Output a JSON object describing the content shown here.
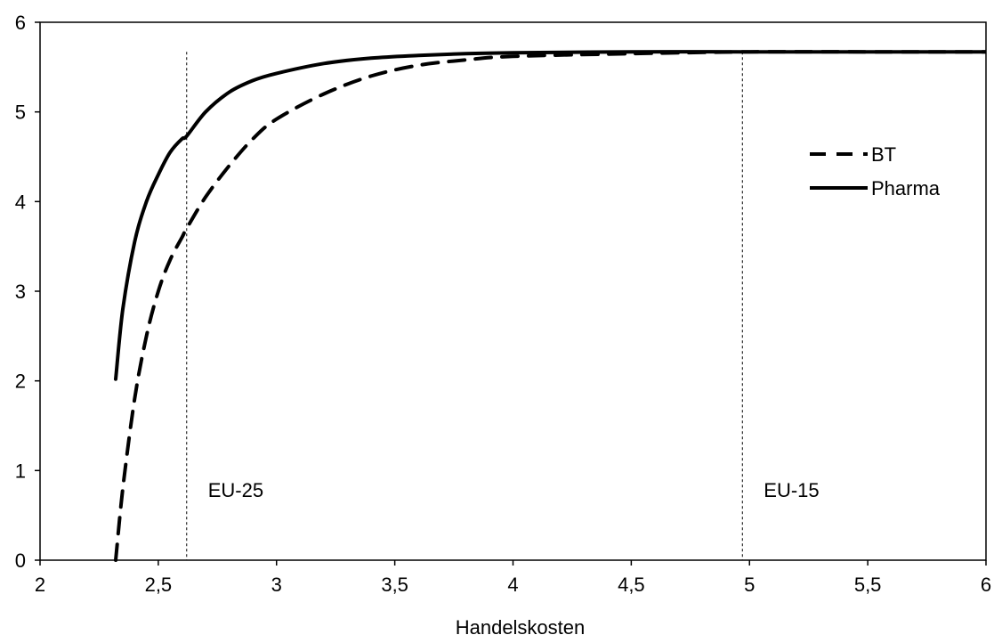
{
  "chart_data": {
    "type": "line",
    "xlabel": "Handelskosten",
    "ylabel": "",
    "xlim": [
      2,
      6
    ],
    "ylim": [
      0,
      6
    ],
    "x_ticks": [
      "2",
      "2,5",
      "3",
      "3,5",
      "4",
      "4,5",
      "5",
      "5,5",
      "6"
    ],
    "y_ticks": [
      "0",
      "1",
      "2",
      "3",
      "4",
      "5",
      "6"
    ],
    "grid": false,
    "legend_position": "right",
    "series": [
      {
        "name": "BT",
        "style": "dashed",
        "color": "#000000",
        "x": [
          2.32,
          2.35,
          2.4,
          2.45,
          2.5,
          2.55,
          2.6,
          2.62,
          2.7,
          2.8,
          2.9,
          3.0,
          3.2,
          3.4,
          3.6,
          3.8,
          4.0,
          4.5,
          5.0,
          5.5,
          6.0
        ],
        "y": [
          0.0,
          0.8,
          1.8,
          2.5,
          3.0,
          3.35,
          3.6,
          3.7,
          4.05,
          4.4,
          4.7,
          4.92,
          5.2,
          5.4,
          5.52,
          5.58,
          5.62,
          5.65,
          5.67,
          5.67,
          5.67
        ]
      },
      {
        "name": "Pharma",
        "style": "solid",
        "color": "#000000",
        "x": [
          2.32,
          2.35,
          2.4,
          2.45,
          2.5,
          2.55,
          2.6,
          2.62,
          2.7,
          2.8,
          2.9,
          3.0,
          3.2,
          3.4,
          3.6,
          3.8,
          4.0,
          4.5,
          5.0,
          5.5,
          6.0
        ],
        "y": [
          2.02,
          2.8,
          3.55,
          4.0,
          4.3,
          4.55,
          4.7,
          4.73,
          5.0,
          5.22,
          5.35,
          5.43,
          5.54,
          5.6,
          5.63,
          5.65,
          5.66,
          5.67,
          5.67,
          5.67,
          5.67
        ]
      }
    ],
    "annotations": [
      {
        "label": "EU-25",
        "x": 2.62
      },
      {
        "label": "EU-15",
        "x": 4.97
      }
    ]
  }
}
